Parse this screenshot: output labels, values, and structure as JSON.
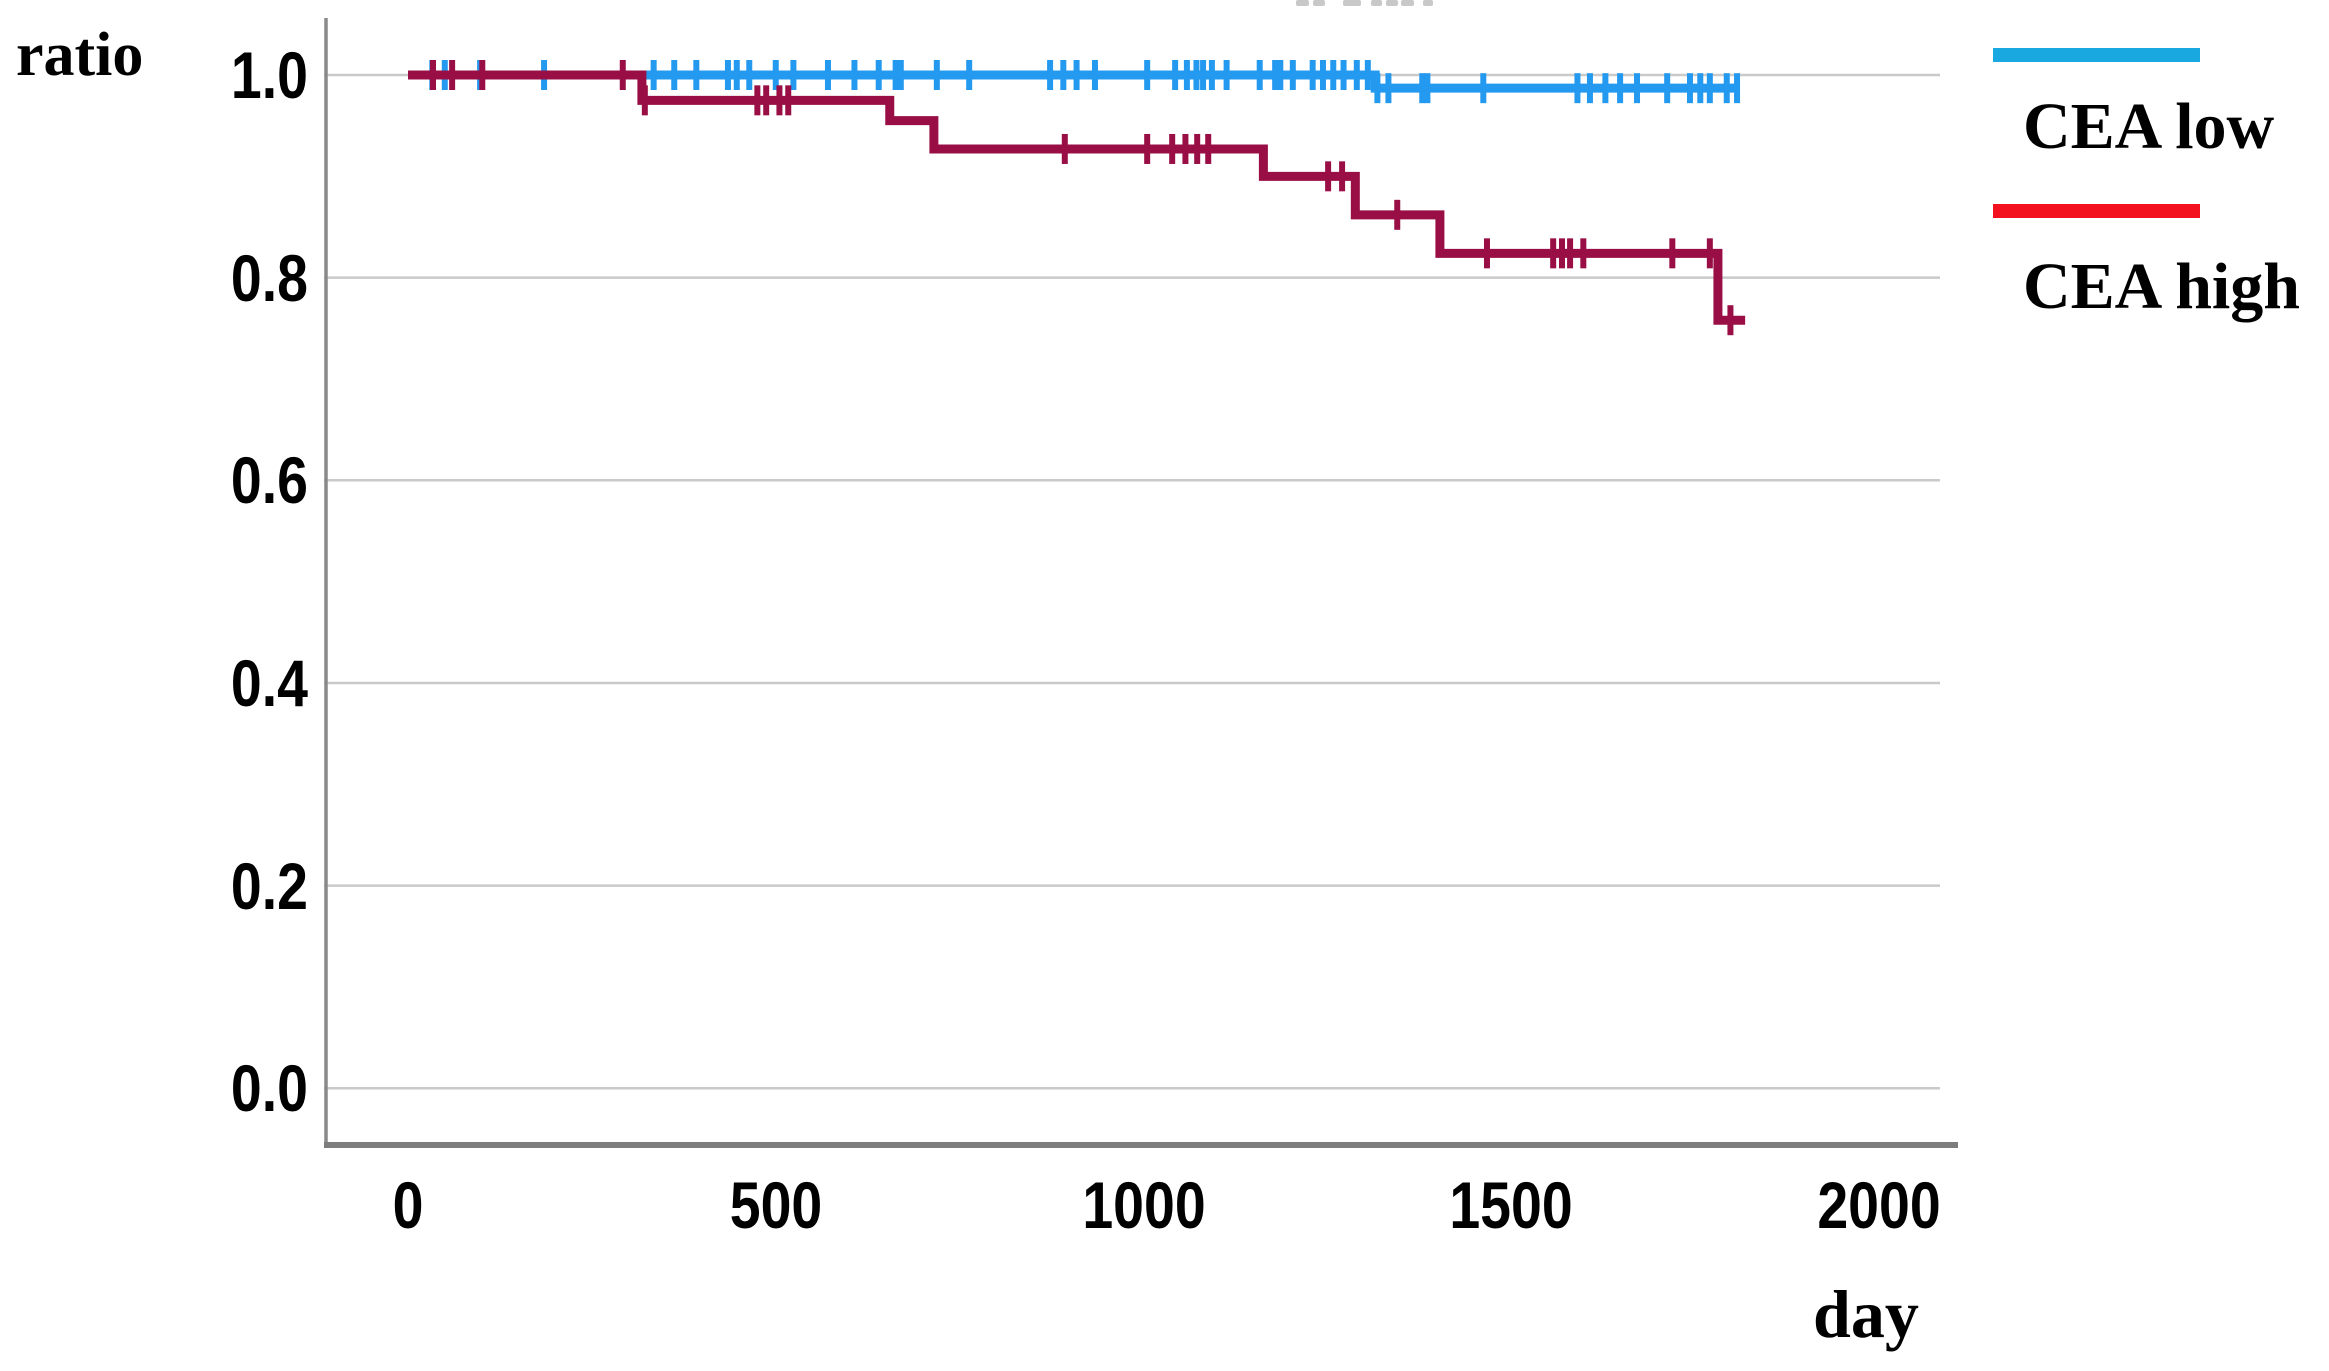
{
  "ylabel": "ratio",
  "xlabel": "day",
  "legend": {
    "position": "right-outside",
    "entries": [
      {
        "label": "CEA low",
        "color": "#19A8E0"
      },
      {
        "label": "CEA high",
        "color": "#F3101F"
      }
    ]
  },
  "chart_data": {
    "type": "line",
    "subtype": "kaplan-meier-step-survival",
    "title": "",
    "xlabel": "day",
    "ylabel": "ratio",
    "xlim": [
      0,
      2100
    ],
    "ylim": [
      0.0,
      1.0
    ],
    "grid": "horizontal",
    "grid_color": "#CACACA",
    "axis_color": "#8A8A8A",
    "legend_position": "right-outside",
    "xticks": [
      {
        "label": "0",
        "value": 0
      },
      {
        "label": "500",
        "value": 500
      },
      {
        "label": "1000",
        "value": 1000
      },
      {
        "label": "1500",
        "value": 1500
      },
      {
        "label": "2000",
        "value": 2000
      }
    ],
    "yticks": [
      {
        "label": "1.0",
        "value": 1.0
      },
      {
        "label": "0.8",
        "value": 0.8
      },
      {
        "label": "0.6",
        "value": 0.6
      },
      {
        "label": "0.4",
        "value": 0.4
      },
      {
        "label": "0.2",
        "value": 0.2
      },
      {
        "label": "0.0",
        "value": 0.0
      }
    ],
    "series": [
      {
        "name": "CEA low",
        "color": "#2499F0",
        "legend_color": "#19A8E0",
        "steps": [
          [
            0,
            1.0
          ],
          [
            1315,
            0.987
          ]
        ],
        "end_day": 1807,
        "censor_days": [
          33,
          50,
          98,
          185,
          334,
          362,
          392,
          435,
          447,
          464,
          500,
          524,
          571,
          607,
          640,
          663,
          670,
          719,
          763,
          873,
          891,
          909,
          934,
          1005,
          1043,
          1059,
          1072,
          1081,
          1093,
          1113,
          1158,
          1179,
          1186,
          1203,
          1230,
          1244,
          1258,
          1272,
          1290,
          1305,
          1318,
          1333,
          1379,
          1386,
          1462,
          1590,
          1607,
          1628,
          1648,
          1671,
          1712,
          1743,
          1757,
          1770,
          1793,
          1807
        ]
      },
      {
        "name": "CEA high",
        "color": "#990E45",
        "legend_color": "#F3101F",
        "steps": [
          [
            0,
            1.0
          ],
          [
            318,
            0.975
          ],
          [
            655,
            0.955
          ],
          [
            715,
            0.927
          ],
          [
            1163,
            0.9
          ],
          [
            1288,
            0.862
          ],
          [
            1403,
            0.824
          ],
          [
            1781,
            0.758
          ]
        ],
        "end_day": 1818,
        "censor_days": [
          34,
          60,
          101,
          292,
          322,
          475,
          487,
          505,
          517,
          893,
          1005,
          1039,
          1057,
          1073,
          1088,
          1251,
          1270,
          1345,
          1467,
          1557,
          1569,
          1580,
          1598,
          1719,
          1770,
          1798
        ]
      }
    ]
  }
}
